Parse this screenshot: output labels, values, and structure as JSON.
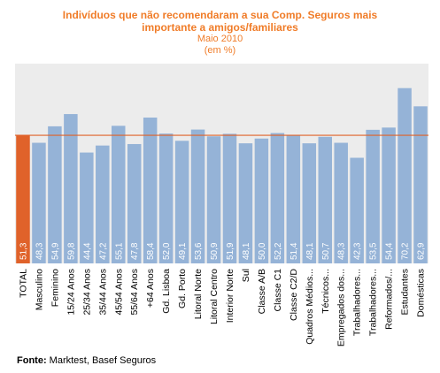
{
  "chart_data": {
    "type": "bar",
    "title_lines": [
      "Indivíduos que não recomendaram a sua Comp. Seguros mais",
      "importante a amigos/familiares"
    ],
    "subtitle_lines": [
      "Maio 2010",
      "(em %)"
    ],
    "categories": [
      "TOTAL",
      "Masculino",
      "Feminino",
      "15/24 Anos",
      "25/34 Anos",
      "35/44 Anos",
      "45/54 Anos",
      "55/64 Anos",
      "+64 Anos",
      "Gd. Lisboa",
      "Gd. Porto",
      "Litoral Norte",
      "Litoral Centro",
      "Interior Norte",
      "Sul",
      "Classe A/B",
      "Classe C1",
      "Classe C2/D",
      "Quadros Médios...",
      "Técnicos...",
      "Empregados dos...",
      "Trabalhadores...",
      "Trabalhadores...",
      "Reformados/...",
      "Estudantes",
      "Domésticas"
    ],
    "values": [
      51.3,
      48.3,
      54.9,
      59.8,
      44.4,
      47.2,
      55.1,
      47.8,
      58.4,
      52.0,
      49.1,
      53.6,
      50.9,
      51.9,
      48.1,
      50.0,
      52.2,
      51.4,
      48.1,
      50.7,
      48.3,
      42.3,
      53.5,
      54.4,
      70.2,
      62.9
    ],
    "value_labels": [
      "51,3",
      "48,3",
      "54,9",
      "59,8",
      "44,4",
      "47,2",
      "55,1",
      "47,8",
      "58,4",
      "52,0",
      "49,1",
      "53,6",
      "50,9",
      "51,9",
      "48,1",
      "50,0",
      "52,2",
      "51,4",
      "48,1",
      "50,7",
      "48,3",
      "42,3",
      "53,5",
      "54,4",
      "70,2",
      "62,9"
    ],
    "ylim": [
      0,
      80
    ],
    "reference_line": 51.3,
    "grid": false,
    "colors": {
      "total": "#e0622a",
      "bars": "#95b3d7",
      "reference": "#e0622a",
      "plot_background": "#ececec",
      "title": "#f07c28"
    }
  },
  "footer": {
    "source_label": "Fonte:",
    "source_text": " Marktest, Basef Seguros"
  }
}
